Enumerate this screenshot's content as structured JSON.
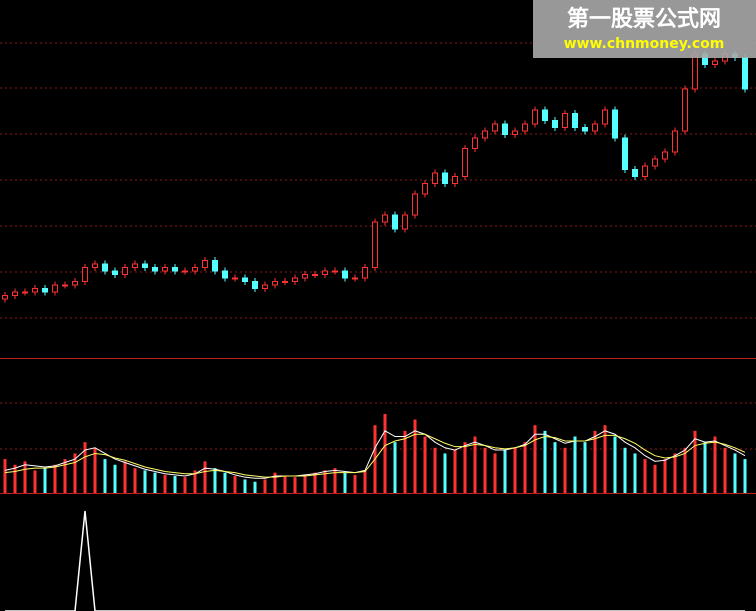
{
  "chart_data": [
    {
      "type": "candlestick",
      "up_color": "#ff3232",
      "down_color": "#54ffff",
      "ylim": [
        0,
        100
      ],
      "open": [
        16,
        17,
        18,
        18,
        19,
        18,
        20,
        20,
        21,
        25,
        26,
        24,
        23,
        25,
        26,
        25,
        24,
        25,
        24,
        24,
        25,
        27,
        24,
        22,
        22,
        21,
        19,
        20,
        21,
        21,
        22,
        23,
        23,
        24,
        24,
        22,
        22,
        25,
        38,
        40,
        36,
        40,
        46,
        49,
        52,
        49,
        51,
        59,
        62,
        64,
        66,
        63,
        64,
        66,
        70,
        67,
        65,
        69,
        65,
        64,
        66,
        70,
        62,
        53,
        51,
        54,
        56,
        58,
        64,
        76,
        86,
        83,
        84,
        86,
        85
      ],
      "high": [
        18,
        19,
        19,
        20,
        20,
        21,
        21,
        22,
        26,
        27,
        27,
        25,
        26,
        27,
        27,
        26,
        26,
        26,
        25,
        26,
        28,
        28,
        25,
        23,
        23,
        22,
        21,
        22,
        22,
        23,
        24,
        24,
        25,
        25,
        25,
        23,
        26,
        39,
        41,
        41,
        41,
        47,
        50,
        53,
        53,
        52,
        60,
        63,
        65,
        67,
        67,
        65,
        67,
        71,
        71,
        68,
        70,
        70,
        66,
        67,
        71,
        71,
        63,
        54,
        55,
        57,
        59,
        65,
        77,
        87,
        87,
        85,
        87,
        87,
        86
      ],
      "low": [
        15,
        16,
        17,
        17,
        17,
        17,
        19,
        19,
        20,
        24,
        23,
        22,
        22,
        24,
        24,
        23,
        23,
        23,
        23,
        23,
        24,
        23,
        21,
        21,
        20,
        18,
        18,
        19,
        20,
        20,
        21,
        22,
        22,
        23,
        21,
        21,
        21,
        24,
        37,
        35,
        35,
        39,
        45,
        48,
        48,
        48,
        50,
        58,
        61,
        63,
        62,
        62,
        63,
        65,
        66,
        64,
        64,
        64,
        63,
        63,
        65,
        61,
        52,
        50,
        50,
        53,
        55,
        57,
        63,
        75,
        82,
        82,
        83,
        84,
        75
      ],
      "close": [
        17,
        18,
        18,
        19,
        18,
        20,
        20,
        21,
        25,
        26,
        24,
        23,
        25,
        26,
        25,
        24,
        25,
        24,
        24,
        25,
        27,
        24,
        22,
        22,
        21,
        19,
        20,
        21,
        21,
        22,
        23,
        23,
        24,
        24,
        22,
        22,
        25,
        38,
        40,
        36,
        40,
        46,
        49,
        52,
        49,
        51,
        59,
        62,
        64,
        66,
        63,
        64,
        66,
        70,
        67,
        65,
        69,
        65,
        64,
        66,
        70,
        62,
        53,
        51,
        54,
        56,
        58,
        64,
        76,
        86,
        83,
        84,
        86,
        85,
        76
      ]
    },
    {
      "type": "volume",
      "up_color": "#ff3232",
      "down_color": "#54ffff",
      "ylim": [
        0,
        100
      ],
      "values": [
        30,
        25,
        28,
        20,
        22,
        25,
        30,
        35,
        45,
        40,
        30,
        25,
        28,
        22,
        20,
        18,
        16,
        15,
        14,
        20,
        28,
        22,
        18,
        15,
        12,
        10,
        12,
        18,
        15,
        14,
        16,
        18,
        20,
        22,
        18,
        16,
        20,
        60,
        70,
        45,
        55,
        65,
        50,
        40,
        35,
        38,
        45,
        50,
        40,
        35,
        38,
        40,
        45,
        60,
        55,
        45,
        40,
        50,
        45,
        55,
        60,
        50,
        40,
        35,
        30,
        25,
        30,
        35,
        40,
        55,
        45,
        50,
        40,
        35,
        30
      ],
      "lines": [
        {
          "color": "#ffffff",
          "values": [
            20,
            22,
            25,
            24,
            23,
            24,
            27,
            30,
            38,
            40,
            35,
            30,
            27,
            24,
            21,
            19,
            17,
            16,
            15,
            17,
            22,
            21,
            19,
            16,
            14,
            13,
            13,
            15,
            15,
            15,
            16,
            17,
            19,
            20,
            19,
            18,
            20,
            40,
            55,
            50,
            50,
            55,
            52,
            45,
            40,
            38,
            42,
            45,
            42,
            38,
            38,
            40,
            43,
            52,
            52,
            48,
            44,
            46,
            46,
            50,
            55,
            52,
            45,
            40,
            33,
            28,
            29,
            33,
            38,
            48,
            45,
            46,
            42,
            38,
            33
          ]
        },
        {
          "color": "#ffff66",
          "values": [
            18,
            19,
            21,
            22,
            22,
            23,
            25,
            27,
            32,
            35,
            34,
            31,
            29,
            26,
            23,
            21,
            19,
            18,
            17,
            17,
            19,
            20,
            19,
            18,
            16,
            15,
            14,
            14,
            15,
            15,
            15,
            16,
            17,
            18,
            18,
            18,
            19,
            30,
            42,
            46,
            48,
            52,
            52,
            48,
            44,
            41,
            41,
            43,
            42,
            40,
            39,
            40,
            42,
            47,
            50,
            49,
            46,
            46,
            46,
            48,
            51,
            51,
            48,
            44,
            38,
            33,
            31,
            32,
            35,
            42,
            44,
            45,
            43,
            40,
            36
          ]
        }
      ]
    },
    {
      "type": "line",
      "color": "#ffffff",
      "ylim": [
        0,
        100
      ],
      "values": [
        0,
        0,
        0,
        0,
        0,
        0,
        0,
        0,
        100,
        0,
        0,
        0,
        0,
        0,
        0,
        0,
        0,
        0,
        0,
        0,
        0,
        0,
        0,
        0,
        0,
        0,
        0,
        0,
        0,
        0,
        0,
        0,
        0,
        0,
        0,
        0,
        0,
        0,
        0,
        0,
        0,
        0,
        0,
        0,
        0,
        0,
        0,
        0,
        0,
        0,
        0,
        0,
        0,
        0,
        0,
        0,
        0,
        0,
        0,
        0,
        0,
        0,
        0,
        0,
        0,
        0,
        0,
        0,
        0,
        0,
        0,
        0,
        0,
        0,
        0
      ]
    }
  ],
  "watermark": {
    "title": "第一股票公式网",
    "url": "www.chnmoney.com"
  }
}
